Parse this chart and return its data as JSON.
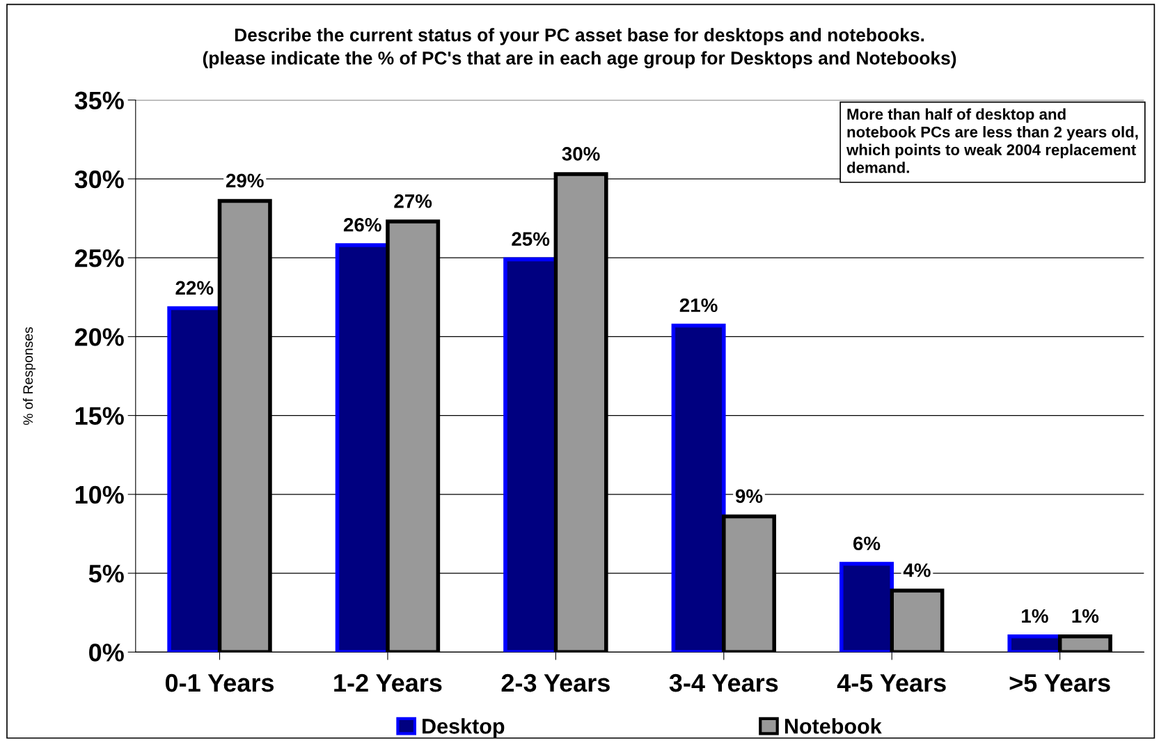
{
  "chart_data": {
    "type": "bar",
    "title": "Describe the current status of your PC asset base for desktops and notebooks.\n(please indicate the % of PC's that are in each age group for Desktops and Notebooks)",
    "ylabel": "% of Responses",
    "categories": [
      "0-1 Years",
      "1-2 Years",
      "2-3 Years",
      "3-4 Years",
      "4-5 Years",
      ">5 Years"
    ],
    "series": [
      {
        "name": "Desktop",
        "color": "#000080",
        "values": [
          21.8,
          25.8,
          24.9,
          20.7,
          5.6,
          1.0
        ],
        "value_labels": [
          "22%",
          "26%",
          "25%",
          "21%",
          "6%",
          "1%"
        ]
      },
      {
        "name": "Notebook",
        "color": "#999999",
        "values": [
          28.6,
          27.3,
          30.3,
          8.6,
          3.9,
          1.0
        ],
        "value_labels": [
          "29%",
          "27%",
          "30%",
          "9%",
          "4%",
          "1%"
        ]
      }
    ],
    "ylim": [
      0,
      35
    ],
    "yticks": [
      {
        "value": 0,
        "label": "0%"
      },
      {
        "value": 5,
        "label": "5%"
      },
      {
        "value": 10,
        "label": "10%"
      },
      {
        "value": 15,
        "label": "15%"
      },
      {
        "value": 20,
        "label": "20%"
      },
      {
        "value": 25,
        "label": "25%"
      },
      {
        "value": 30,
        "label": "30%"
      },
      {
        "value": 35,
        "label": "35%"
      }
    ],
    "grid": "y",
    "legend": "bottom",
    "annotations": [
      "More than half of desktop and\nnotebook PCs are less than 2 years old,\nwhich points to weak 2004 replacement\ndemand."
    ]
  }
}
